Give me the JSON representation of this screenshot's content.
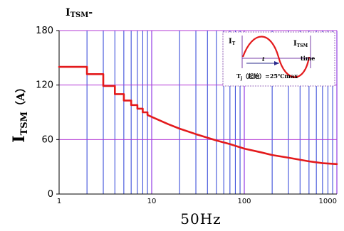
{
  "chart_data": {
    "type": "line",
    "top_label": "I",
    "top_label_sub": "TSM",
    "top_label_tail": "-",
    "ylabel_main": "I",
    "ylabel_sub": "TSM",
    "ylabel_unit": "（A）",
    "xlabel": "50Hz",
    "x_scale": "log",
    "xlim": [
      1,
      1000
    ],
    "ylim": [
      0,
      180
    ],
    "y_ticks": [
      "0",
      "60",
      "120",
      "180"
    ],
    "x_ticks": [
      "1",
      "10",
      "100",
      "1000"
    ],
    "grid": true,
    "series": [
      {
        "color": "#e31a1c",
        "x": [
          1,
          2,
          2,
          3,
          3,
          4,
          4,
          5,
          5,
          6,
          6,
          7,
          7,
          8,
          8,
          9,
          9,
          10,
          15,
          20,
          30,
          50,
          70,
          100,
          150,
          200,
          300,
          500,
          700,
          1000
        ],
        "y": [
          140,
          140,
          132,
          132,
          119,
          119,
          110,
          110,
          103,
          103,
          98,
          98,
          94,
          94,
          90,
          90,
          87,
          85,
          77,
          72,
          66,
          59,
          55,
          50,
          46,
          43,
          40,
          36,
          34,
          33
        ]
      }
    ],
    "inset": {
      "label_it": "I",
      "label_it_sub": "T",
      "label_itsm": "I",
      "label_itsm_sub": "TSM",
      "label_period": "t",
      "label_time": "time",
      "label_tj": "T",
      "label_tj_sub": "j",
      "label_tj_rest": "（起始）=25℃max"
    }
  }
}
